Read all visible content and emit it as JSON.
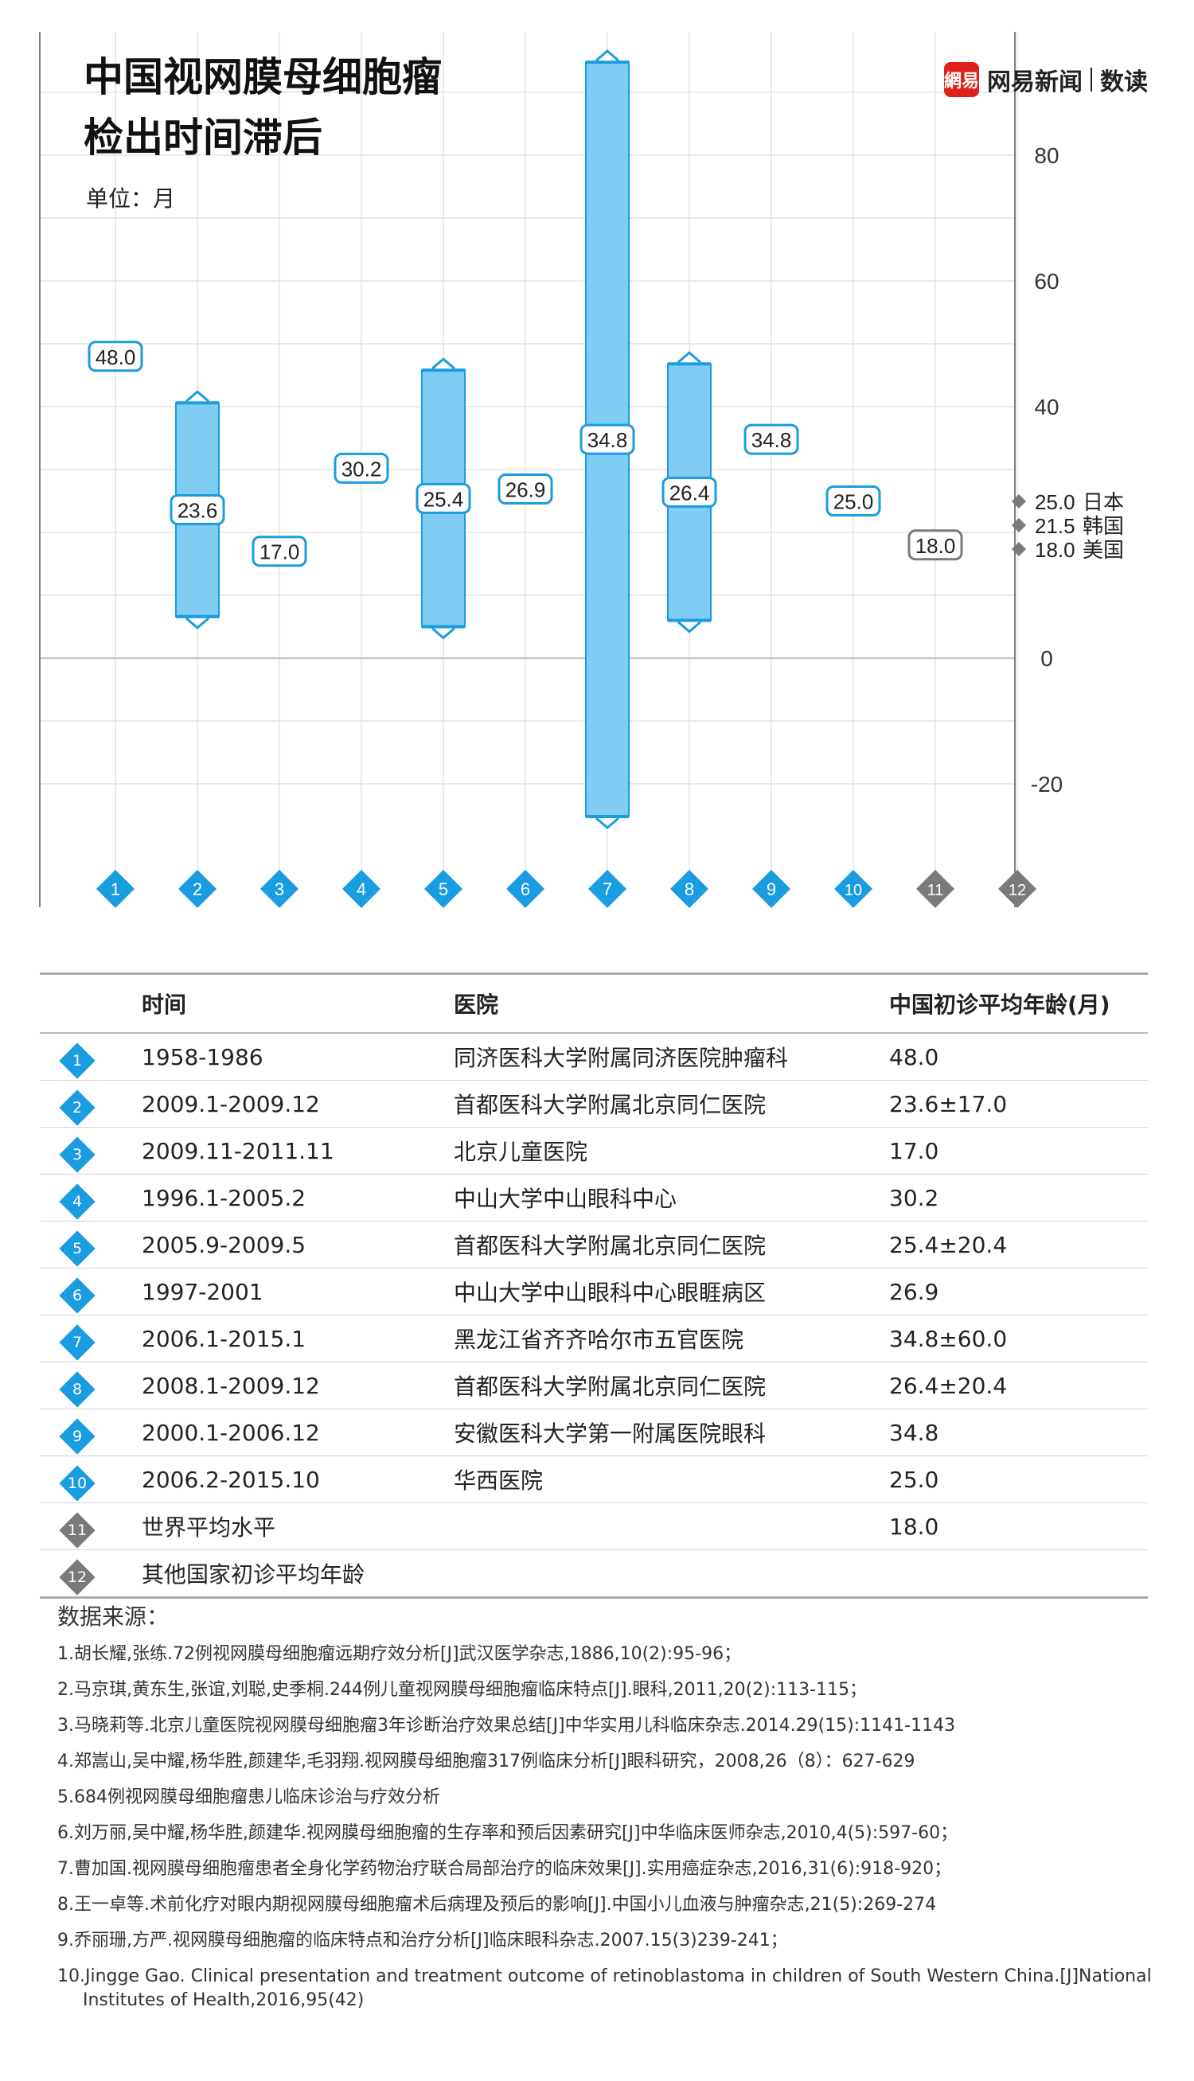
{
  "header": {
    "title_line1": "中国视网膜母细胞瘤",
    "title_line2": "检出时间滞后",
    "unit": "单位：月",
    "brand_logo": "網易",
    "brand_name": "网易新闻",
    "brand_sub": "数读"
  },
  "colors": {
    "china_bar": "#7fcdf2",
    "china_accent": "#1a9ce0",
    "other_country": "#7a7a7a",
    "grid": "#e3e3e3",
    "zero_line": "#c8c8c8"
  },
  "chart_data": {
    "type": "range-bar",
    "title": "中国视网膜母细胞瘤 检出时间滞后",
    "unit_label": "单位：月",
    "ylim": [
      -30,
      95
    ],
    "yticks": [
      -20,
      0,
      40,
      60,
      80
    ],
    "grid": true,
    "categories": [
      "1",
      "2",
      "3",
      "4",
      "5",
      "6",
      "7",
      "8",
      "9",
      "10",
      "11",
      "12"
    ],
    "series": [
      {
        "name": "中国初诊平均年龄(月)",
        "values": [
          48.0,
          23.6,
          17.0,
          30.2,
          25.4,
          26.9,
          34.8,
          26.4,
          34.8,
          25.0,
          null,
          null
        ],
        "labels": [
          "48.0",
          "23.6",
          "17.0",
          "30.2",
          "25.4",
          "26.9",
          "34.8",
          "26.4",
          "34.8",
          "25.0",
          null,
          null
        ],
        "low": [
          null,
          6.6,
          null,
          null,
          5.0,
          null,
          -25.2,
          6.0,
          null,
          null,
          null,
          null
        ],
        "high": [
          null,
          40.6,
          null,
          null,
          45.8,
          null,
          94.8,
          46.8,
          null,
          null,
          null,
          null
        ]
      },
      {
        "name": "世界平均水平",
        "values": [
          null,
          null,
          null,
          null,
          null,
          null,
          null,
          null,
          null,
          null,
          18.0,
          null
        ],
        "labels": [
          null,
          null,
          null,
          null,
          null,
          null,
          null,
          null,
          null,
          null,
          "18.0",
          null
        ]
      }
    ],
    "other_countries": [
      {
        "value": "25.0",
        "name": "日本"
      },
      {
        "value": "21.5",
        "name": "韩国"
      },
      {
        "value": "18.0",
        "name": "美国"
      }
    ]
  },
  "table": {
    "headers": [
      "时间",
      "医院",
      "中国初诊平均年龄(月)"
    ],
    "rows": [
      {
        "num": "1",
        "time": "1958-1986",
        "hospital": "同济医科大学附属同济医院肿瘤科",
        "age": "48.0"
      },
      {
        "num": "2",
        "time": "2009.1-2009.12",
        "hospital": "首都医科大学附属北京同仁医院",
        "age": "23.6±17.0"
      },
      {
        "num": "3",
        "time": "2009.11-2011.11",
        "hospital": "北京儿童医院",
        "age": "17.0"
      },
      {
        "num": "4",
        "time": "1996.1-2005.2",
        "hospital": "中山大学中山眼科中心",
        "age": "30.2"
      },
      {
        "num": "5",
        "time": "2005.9-2009.5",
        "hospital": "首都医科大学附属北京同仁医院",
        "age": "25.4±20.4"
      },
      {
        "num": "6",
        "time": "1997-2001",
        "hospital": "中山大学中山眼科中心眼睚病区",
        "age": "26.9"
      },
      {
        "num": "7",
        "time": "2006.1-2015.1",
        "hospital": "黑龙江省齐齐哈尔市五官医院",
        "age": "34.8±60.0"
      },
      {
        "num": "8",
        "time": "2008.1-2009.12",
        "hospital": "首都医科大学附属北京同仁医院",
        "age": "26.4±20.4"
      },
      {
        "num": "9",
        "time": "2000.1-2006.12",
        "hospital": "安徽医科大学第一附属医院眼科",
        "age": "34.8"
      },
      {
        "num": "10",
        "time": "2006.2-2015.10",
        "hospital": "华西医院",
        "age": "25.0"
      },
      {
        "num": "11",
        "time": "世界平均水平",
        "hospital": "",
        "age": "18.0"
      },
      {
        "num": "12",
        "time": "其他国家初诊平均年龄",
        "hospital": "",
        "age": ""
      }
    ]
  },
  "sources": {
    "title": "数据来源：",
    "items": [
      "1.胡长耀,张练.72例视网膜母细胞瘤远期疗效分析[J]武汉医学杂志,1886,10(2):95-96；",
      "2.马京琪,黄东生,张谊,刘聪,史季桐.244例儿童视网膜母细胞瘤临床特点[J].眼科,2011,20(2):113-115；",
      "3.马晓莉等.北京儿童医院视网膜母细胞瘤3年诊断治疗效果总结[J]中华实用儿科临床杂志.2014.29(15):1141-1143",
      "4.郑嵩山,吴中耀,杨华胜,颜建华,毛羽翔.视网膜母细胞瘤317例临床分析[J]眼科研究，2008,26（8）：627-629",
      "5.684例视网膜母细胞瘤患儿临床诊治与疗效分析",
      "6.刘万丽,吴中耀,杨华胜,颜建华.视网膜母细胞瘤的生存率和预后因素研究[J]中华临床医师杂志,2010,4(5):597-60；",
      "7.曹加国.视网膜母细胞瘤患者全身化学药物治疗联合局部治疗的临床效果[J].实用癌症杂志,2016,31(6):918-920；",
      "8.王一卓等.术前化疗对眼内期视网膜母细胞瘤术后病理及预后的影响[J].中国小儿血液与肿瘤杂志,21(5):269-274",
      "9.乔丽珊,方严.视网膜母细胞瘤的临床特点和治疗分析[J]临床眼科杂志.2007.15(3)239-241；",
      "10.Jingge Gao. Clinical presentation and treatment outcome of retinoblastoma in children of South Western China.[J]National Institutes of Health,2016,95(42)"
    ]
  }
}
